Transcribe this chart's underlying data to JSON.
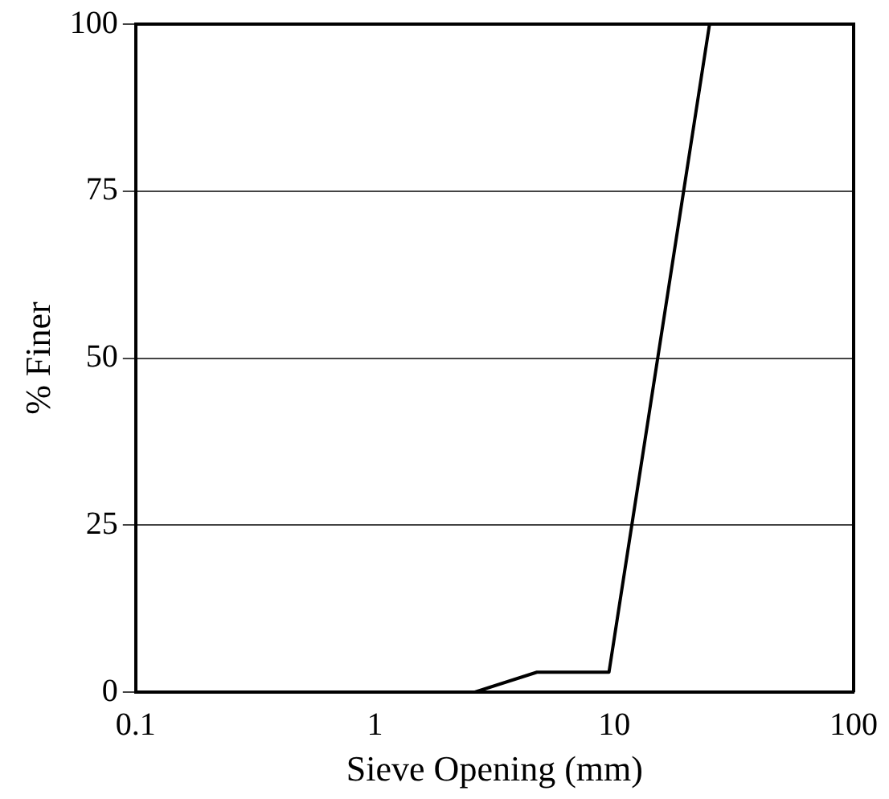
{
  "chart_data": {
    "type": "line",
    "xlabel": "Sieve Opening (mm)",
    "ylabel": "% Finer",
    "x": [
      0.1,
      2.6,
      4.75,
      9.5,
      25,
      100
    ],
    "series": [
      {
        "color": "#000000",
        "values": [
          0,
          0,
          3,
          3,
          100,
          100
        ]
      }
    ],
    "log": "x",
    "xlim": [
      0.1,
      100
    ],
    "xticks": [
      0.1,
      1,
      10,
      100
    ],
    "ylim": [
      0,
      100
    ],
    "yticks": [
      0,
      25,
      50,
      75,
      100
    ],
    "grid": "y",
    "legend": false,
    "marker": "none",
    "line_style": "solid"
  }
}
